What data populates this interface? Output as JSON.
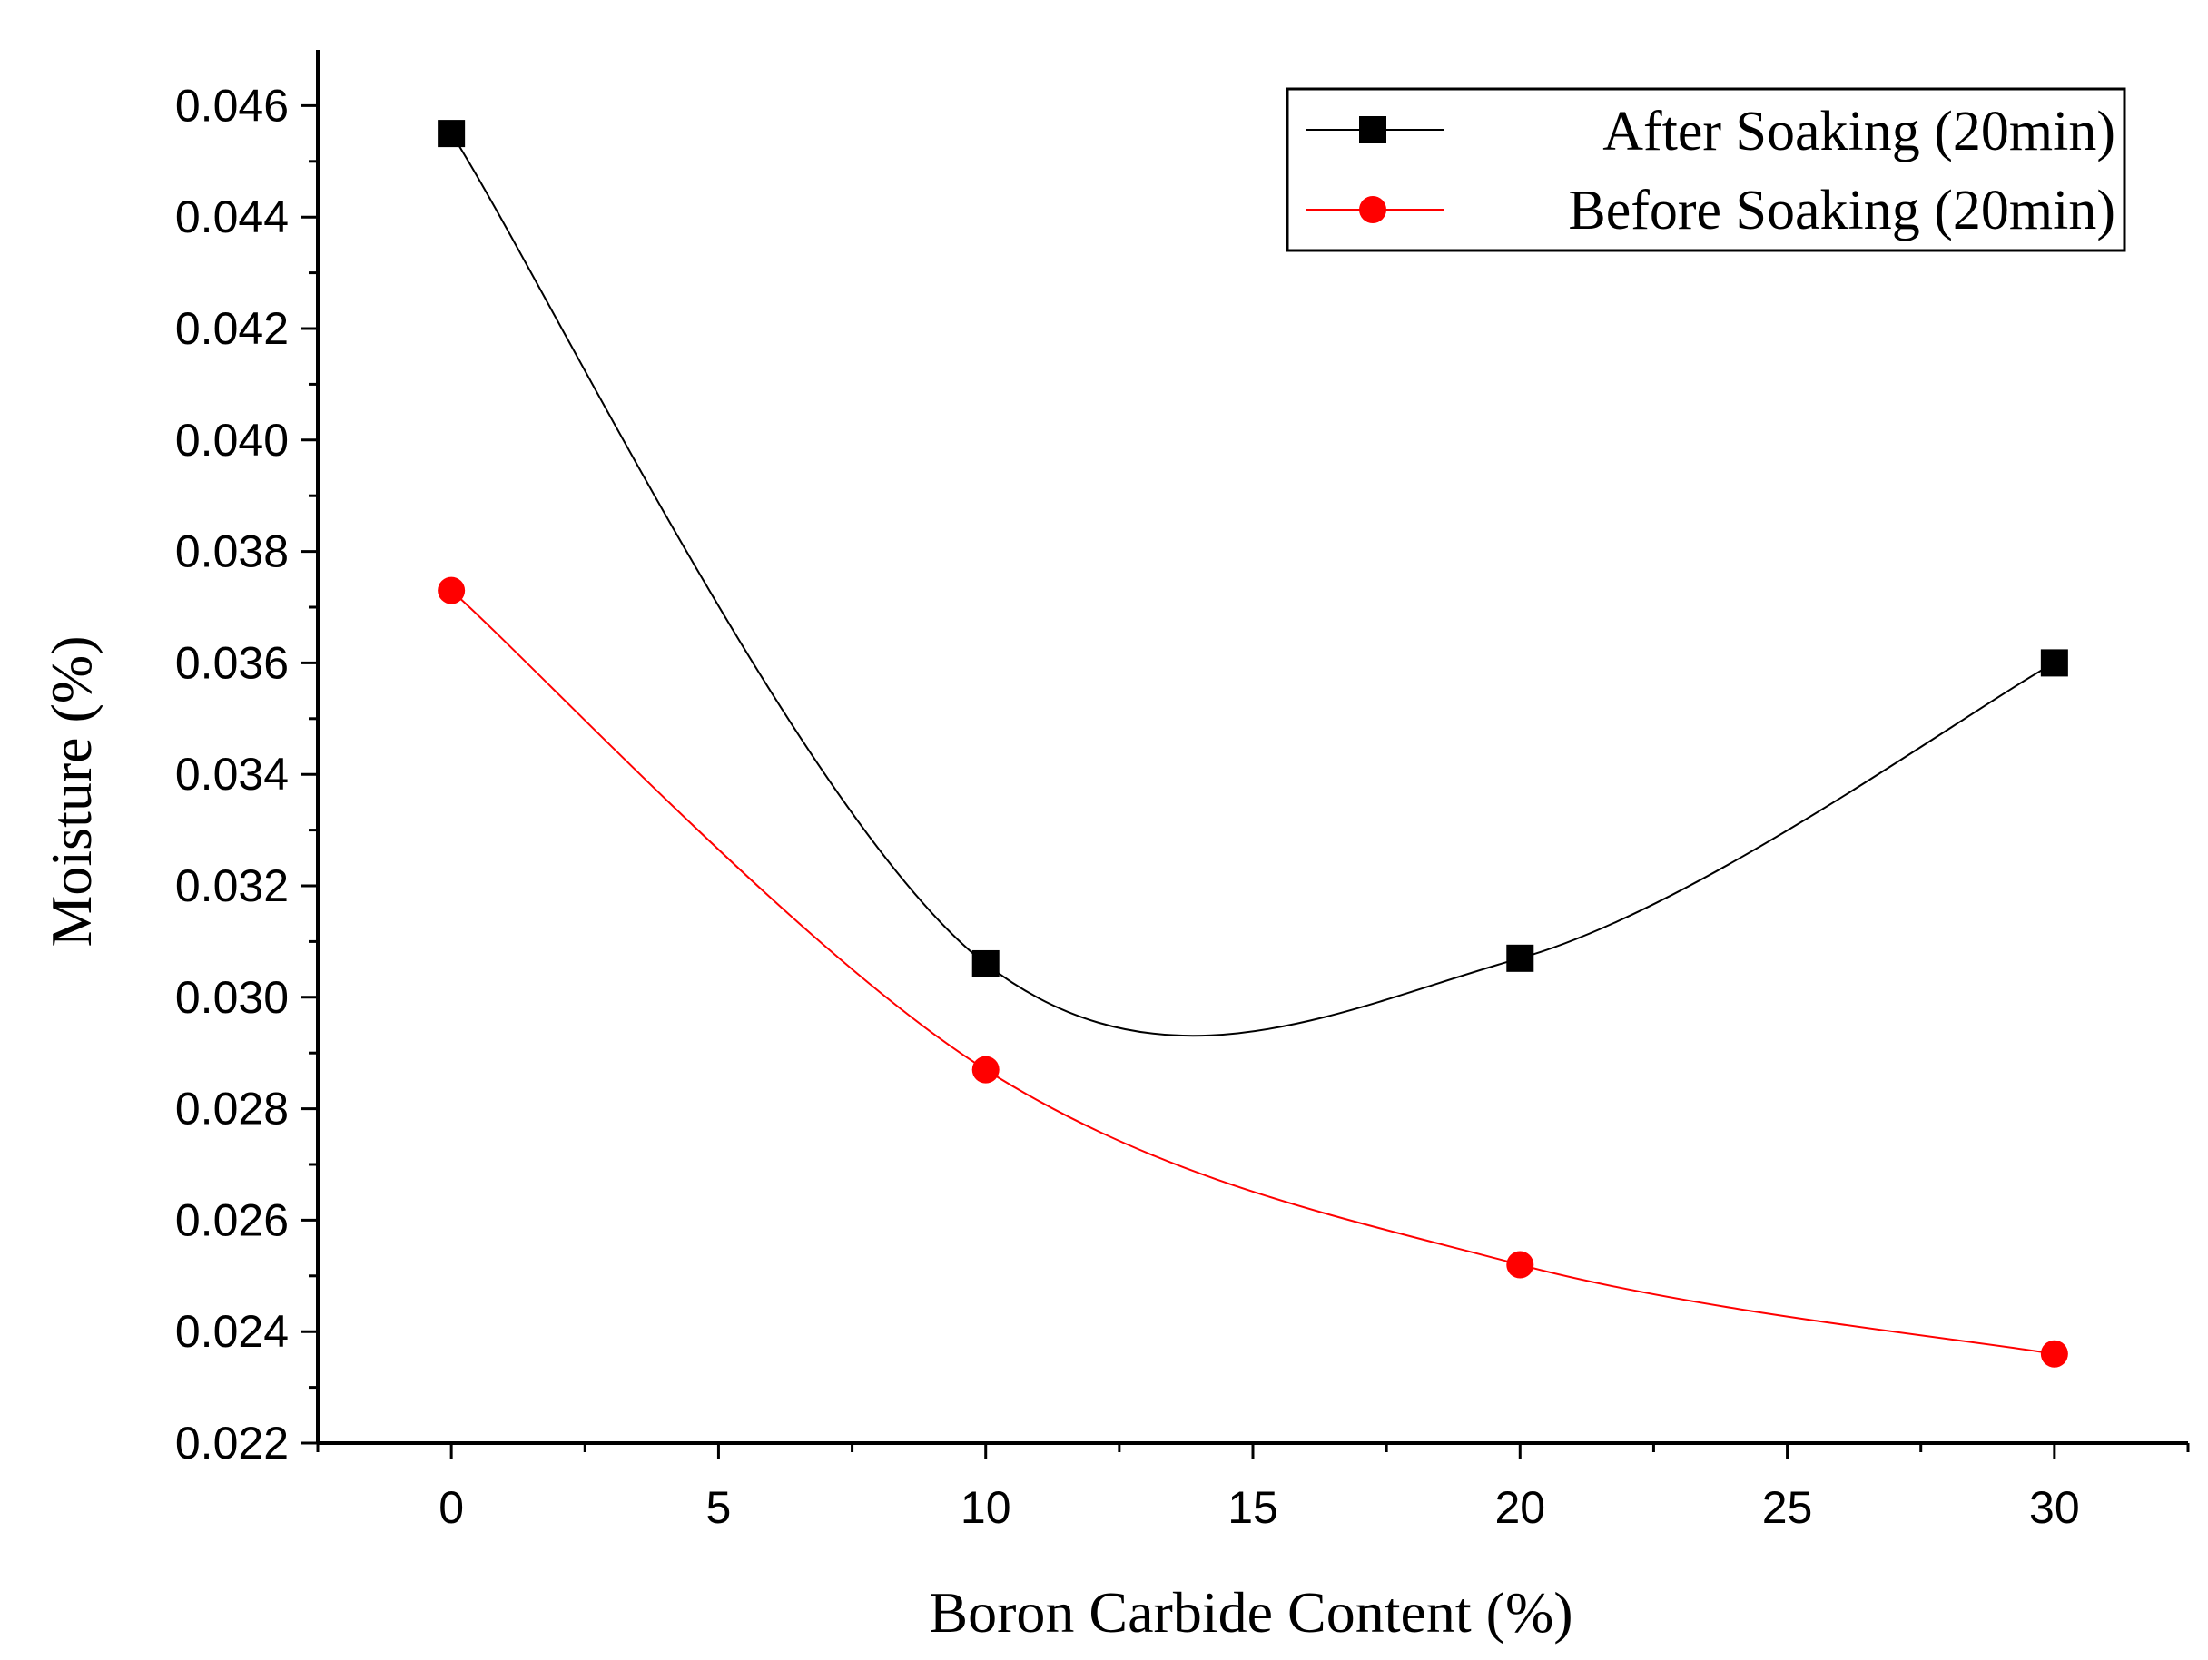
{
  "chart_data": {
    "type": "line",
    "title": "",
    "xlabel": "Boron Carbide Content (%)",
    "ylabel": "Moisture (%)",
    "xlim": [
      -2.5,
      32.5
    ],
    "ylim": [
      0.022,
      0.047
    ],
    "xticks": [
      0,
      5,
      10,
      15,
      20,
      25,
      30
    ],
    "xtick_labels": [
      "0",
      "5",
      "10",
      "15",
      "20",
      "25",
      "30"
    ],
    "yticks": [
      0.022,
      0.024,
      0.026,
      0.028,
      0.03,
      0.032,
      0.034,
      0.036,
      0.038,
      0.04,
      0.042,
      0.044,
      0.046
    ],
    "ytick_labels": [
      "0.022",
      "0.024",
      "0.026",
      "0.028",
      "0.030",
      "0.032",
      "0.034",
      "0.036",
      "0.038",
      "0.040",
      "0.042",
      "0.044",
      "0.046"
    ],
    "grid": false,
    "legend_position": "top-right",
    "series": [
      {
        "name": "After Soaking (20min)",
        "marker": "square",
        "color": "#000000",
        "x": [
          0,
          10,
          20,
          30
        ],
        "y": [
          0.0455,
          0.0306,
          0.0307,
          0.036
        ]
      },
      {
        "name": "Before Soaking (20min)",
        "marker": "circle",
        "color": "#ff0000",
        "x": [
          0,
          10,
          20,
          30
        ],
        "y": [
          0.0373,
          0.0287,
          0.0252,
          0.0236
        ]
      }
    ]
  }
}
